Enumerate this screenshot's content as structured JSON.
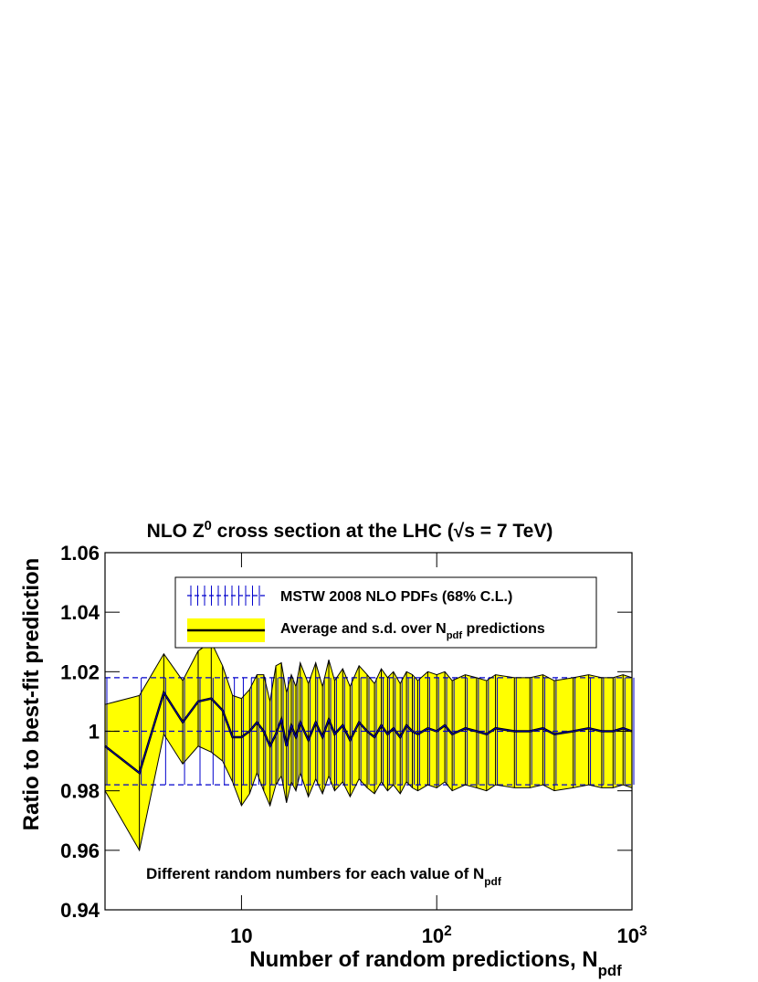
{
  "chart_data": {
    "type": "line",
    "log_x": true,
    "title": "NLO Z",
    "title_sup": "0",
    "title_tail": " cross section at the LHC (√s = 7 TeV)",
    "x_label": "Number of random predictions, N",
    "x_label_sub": "pdf",
    "y_label": "Ratio to best-fit prediction",
    "annotation": "Different random numbers for each value of N",
    "annotation_sub": "pdf",
    "xlim": [
      2,
      1000
    ],
    "xticks": [
      {
        "value": 10,
        "label": "10"
      },
      {
        "value": 100,
        "label": "10",
        "exponent": "2"
      },
      {
        "value": 1000,
        "label": "10",
        "exponent": "3"
      }
    ],
    "ylim": [
      0.94,
      1.06
    ],
    "yticks": [
      0.94,
      0.96,
      0.98,
      1,
      1.02,
      1.04,
      1.06
    ],
    "x": [
      2,
      3,
      4,
      5,
      6,
      7,
      8,
      9,
      10,
      11,
      12,
      13,
      14,
      15,
      16,
      17,
      18,
      19,
      20,
      22,
      24,
      26,
      28,
      30,
      33,
      36,
      40,
      44,
      48,
      52,
      56,
      60,
      65,
      70,
      75,
      80,
      90,
      100,
      110,
      120,
      140,
      160,
      180,
      200,
      250,
      300,
      350,
      400,
      500,
      600,
      700,
      800,
      900,
      1000
    ],
    "reference": {
      "name": "MSTW 2008 NLO PDFs (68% C.L.)",
      "color": "#0000cc",
      "value": 1,
      "upper": 1.018,
      "lower": 0.982
    },
    "series": [
      {
        "name": "Average and s.d. over N",
        "name_sub": "pdf",
        "name_tail": " predictions",
        "color": "#000000",
        "fill": "#ffff00",
        "values": [
          0.995,
          0.986,
          1.013,
          1.003,
          1.01,
          1.011,
          1.007,
          0.998,
          0.998,
          1.0,
          1.003,
          1.0,
          0.995,
          0.999,
          1.004,
          0.995,
          1.002,
          0.998,
          1.003,
          0.997,
          1.003,
          0.998,
          1.004,
          0.999,
          1.002,
          0.997,
          1.003,
          1.0,
          0.998,
          1.002,
          0.999,
          1.001,
          0.998,
          1.002,
          1.0,
          0.999,
          1.001,
          1.0,
          1.002,
          0.999,
          1.001,
          1.0,
          0.999,
          1.001,
          1.0,
          1.0,
          1.001,
          0.999,
          1.0,
          1.001,
          1.0,
          1.0,
          1.001,
          1.0
        ],
        "upper": [
          1.009,
          1.012,
          1.026,
          1.017,
          1.027,
          1.03,
          1.022,
          1.012,
          1.011,
          1.014,
          1.019,
          1.019,
          1.01,
          1.022,
          1.023,
          1.013,
          1.019,
          1.015,
          1.023,
          1.016,
          1.023,
          1.015,
          1.024,
          1.017,
          1.021,
          1.015,
          1.022,
          1.019,
          1.016,
          1.021,
          1.018,
          1.02,
          1.016,
          1.02,
          1.019,
          1.017,
          1.02,
          1.019,
          1.02,
          1.017,
          1.019,
          1.018,
          1.017,
          1.019,
          1.018,
          1.018,
          1.019,
          1.017,
          1.018,
          1.019,
          1.018,
          1.018,
          1.019,
          1.018
        ],
        "lower": [
          0.98,
          0.96,
          0.999,
          0.989,
          0.995,
          0.993,
          0.99,
          0.983,
          0.975,
          0.979,
          0.986,
          0.98,
          0.975,
          0.982,
          0.985,
          0.976,
          0.983,
          0.98,
          0.986,
          0.978,
          0.984,
          0.979,
          0.985,
          0.98,
          0.983,
          0.978,
          0.984,
          0.981,
          0.979,
          0.983,
          0.98,
          0.982,
          0.979,
          0.983,
          0.981,
          0.98,
          0.982,
          0.981,
          0.983,
          0.98,
          0.982,
          0.981,
          0.98,
          0.982,
          0.981,
          0.981,
          0.982,
          0.98,
          0.981,
          0.982,
          0.981,
          0.981,
          0.982,
          0.981
        ]
      }
    ]
  }
}
